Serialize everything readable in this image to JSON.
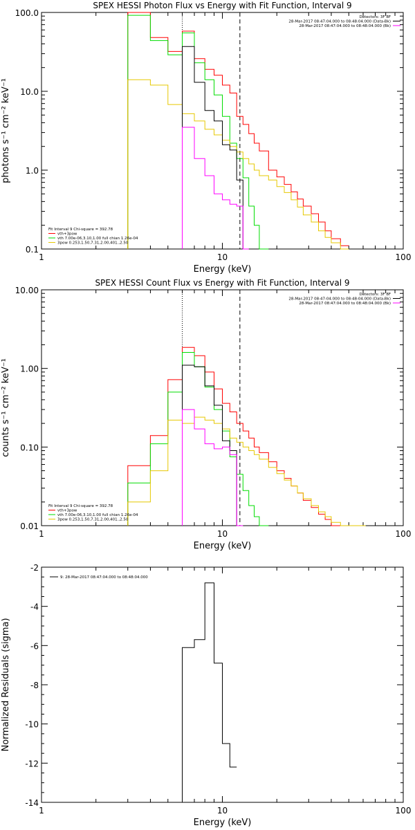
{
  "chart_data": [
    {
      "type": "line",
      "title": "SPEX HESSI Photon Flux vs Energy with Fit Function, Interval 9",
      "xlabel": "Energy (keV)",
      "ylabel": "photons s⁻¹ cm⁻² keV⁻¹",
      "xscale": "log",
      "yscale": "log",
      "xlim": [
        1,
        100
      ],
      "ylim": [
        0.1,
        100
      ],
      "xticks": [
        1,
        10,
        100
      ],
      "xtick_labels": [
        "1",
        "10",
        "100"
      ],
      "yticks": [
        0.1,
        1,
        10,
        100
      ],
      "ytick_labels": [
        "0.1",
        "1.0",
        "10.0",
        "100.0"
      ],
      "vlines": [
        {
          "x": 6.0,
          "style": "dotted"
        },
        {
          "x": 12.5,
          "style": "dashed"
        }
      ],
      "legend_top": [
        "Detectors: 3F 8F",
        "28-Mar-2017 08:47:04.000 to 08:48:04.000 (Data-Bk)",
        "28-Mar-2017 08:47:04.000 to 08:48:04.000 (Bk)"
      ],
      "legend_top_colors": [
        "#000000",
        "#000000",
        "#ff00ff"
      ],
      "fit_info": [
        "Fit Interval 9   Chi-square = 392.78",
        "vth+3pow",
        "vth 7.00e-06,3.10,1.00  full chian 1.26e-04",
        "3pow 0.253,1.50,7.31,2.00,401.,2.50"
      ],
      "fit_colors": [
        "#000000",
        "#ff0000",
        "#00dd00",
        "#e6c800"
      ],
      "edges": [
        3,
        4,
        5,
        6,
        7,
        8,
        9,
        10,
        11,
        12,
        13,
        14,
        15,
        16,
        18,
        20,
        22,
        24,
        26,
        28,
        31,
        34,
        37,
        40,
        45,
        50
      ],
      "series": [
        {
          "name": "vth+3pow",
          "color": "#ff0000",
          "values": [
            100,
            48,
            32,
            58,
            26,
            19,
            16,
            12,
            9.5,
            4.8,
            3.8,
            2.9,
            2.2,
            1.75,
            1.0,
            0.82,
            0.66,
            0.53,
            0.43,
            0.35,
            0.28,
            0.22,
            0.17,
            0.135,
            0.11
          ]
        },
        {
          "name": "vth",
          "color": "#00dd00",
          "values": [
            92,
            44,
            29,
            55,
            23,
            14,
            9.0,
            4.8,
            2.2,
            1.4,
            0.8,
            0.35,
            0.2,
            0.1
          ]
        },
        {
          "name": "3pow",
          "color": "#e6c800",
          "values": [
            14,
            12,
            6.8,
            5.2,
            4.2,
            3.3,
            2.8,
            2.4,
            2.0,
            1.7,
            1.4,
            1.2,
            1.0,
            0.85,
            0.75,
            0.62,
            0.52,
            0.42,
            0.34,
            0.27,
            0.22,
            0.17,
            0.14,
            0.12,
            0.1
          ]
        },
        {
          "name": "Data-Bk",
          "color": "#000000",
          "values": [
            null,
            null,
            null,
            37,
            13,
            5.7,
            4.2,
            2.1,
            1.8,
            0.75,
            0.1
          ]
        },
        {
          "name": "Bk",
          "color": "#ff00ff",
          "values": [
            null,
            null,
            null,
            3.5,
            1.4,
            0.85,
            0.5,
            0.42,
            0.37,
            0.35,
            0.1
          ]
        }
      ]
    },
    {
      "type": "line",
      "title": "SPEX HESSI Count Flux vs Energy with Fit Function, Interval 9",
      "xlabel": "Energy (keV)",
      "ylabel": "counts s⁻¹ cm⁻² keV⁻¹",
      "xscale": "log",
      "yscale": "log",
      "xlim": [
        1,
        100
      ],
      "ylim": [
        0.01,
        10
      ],
      "xticks": [
        1,
        10,
        100
      ],
      "xtick_labels": [
        "1",
        "10",
        "100"
      ],
      "yticks": [
        0.01,
        0.1,
        1,
        10
      ],
      "ytick_labels": [
        "0.01",
        "0.10",
        "1.00",
        "10.00"
      ],
      "vlines": [
        {
          "x": 6.0,
          "style": "dotted"
        },
        {
          "x": 12.5,
          "style": "dashed"
        }
      ],
      "legend_top": [
        "Detectors: 3F 8F",
        "28-Mar-2017 08:47:04.000 to 08:48:04.000 (Data-Bk)",
        "28-Mar-2017 08:47:04.000 to 08:48:04.000 (Bk)"
      ],
      "legend_top_colors": [
        "#000000",
        "#000000",
        "#ff00ff"
      ],
      "fit_info": [
        "Fit Interval 9   Chi-square = 392.78",
        "vth+3pow",
        "vth 7.00e-06,3.10,1.00  full chian 1.26e-04",
        "3pow 0.253,1.50,7.31,2.00,401.,2.50"
      ],
      "fit_colors": [
        "#000000",
        "#ff0000",
        "#00dd00",
        "#e6c800"
      ],
      "edges": [
        3,
        4,
        5,
        6,
        7,
        8,
        9,
        10,
        11,
        12,
        13,
        14,
        15,
        16,
        18,
        20,
        22,
        24,
        26,
        28,
        31,
        34,
        37,
        40,
        45,
        50,
        56,
        62
      ],
      "series": [
        {
          "name": "vth+3pow",
          "color": "#ff0000",
          "values": [
            0.058,
            0.14,
            0.72,
            1.85,
            1.45,
            0.9,
            0.55,
            0.36,
            0.28,
            0.2,
            0.16,
            0.13,
            0.1,
            0.085,
            0.065,
            0.05,
            0.04,
            0.032,
            0.026,
            0.021,
            0.017,
            0.014,
            0.012,
            0.01
          ]
        },
        {
          "name": "vth",
          "color": "#00dd00",
          "values": [
            0.035,
            0.11,
            0.5,
            1.6,
            1.05,
            0.58,
            0.3,
            0.16,
            0.075,
            0.045,
            0.028,
            0.018,
            0.013,
            0.01
          ]
        },
        {
          "name": "3pow",
          "color": "#e6c800",
          "values": [
            0.02,
            0.05,
            0.22,
            0.2,
            0.24,
            0.22,
            0.2,
            0.17,
            0.13,
            0.115,
            0.1,
            0.09,
            0.08,
            0.07,
            0.055,
            0.046,
            0.038,
            0.032,
            0.026,
            0.022,
            0.018,
            0.015,
            0.013,
            0.011,
            0.01,
            0.01,
            0.01
          ]
        },
        {
          "name": "Data-Bk",
          "color": "#000000",
          "values": [
            null,
            null,
            null,
            1.1,
            1.05,
            0.6,
            0.34,
            0.12,
            0.09,
            0.01
          ]
        },
        {
          "name": "Bk",
          "color": "#ff00ff",
          "values": [
            null,
            null,
            null,
            0.3,
            0.17,
            0.11,
            0.095,
            0.1,
            0.08,
            0.01
          ]
        }
      ]
    },
    {
      "type": "line",
      "title": "",
      "xlabel": "Energy (keV)",
      "ylabel": "Normalized Residuals (sigma)",
      "xscale": "log",
      "yscale": "linear",
      "xlim": [
        1,
        100
      ],
      "ylim": [
        -14,
        -2
      ],
      "xticks": [
        1,
        10,
        100
      ],
      "xtick_labels": [
        "1",
        "10",
        "100"
      ],
      "yticks": [
        -14,
        -12,
        -10,
        -8,
        -6,
        -4,
        -2
      ],
      "ytick_labels": [
        "-14",
        "-12",
        "-10",
        "-8",
        "-6",
        "-4",
        "-2"
      ],
      "legend_top": [
        "9: 28-Mar-2017 08:47:04.000 to 08:48:04.000"
      ],
      "edges": [
        6,
        7,
        8,
        9,
        10,
        11,
        12
      ],
      "series": [
        {
          "name": "9: 28-Mar-2017 08:47:04.000 to 08:48:04.000",
          "color": "#000000",
          "values": [
            -6.1,
            -5.7,
            -2.8,
            -6.9,
            -11.0,
            -12.2
          ]
        }
      ]
    }
  ]
}
